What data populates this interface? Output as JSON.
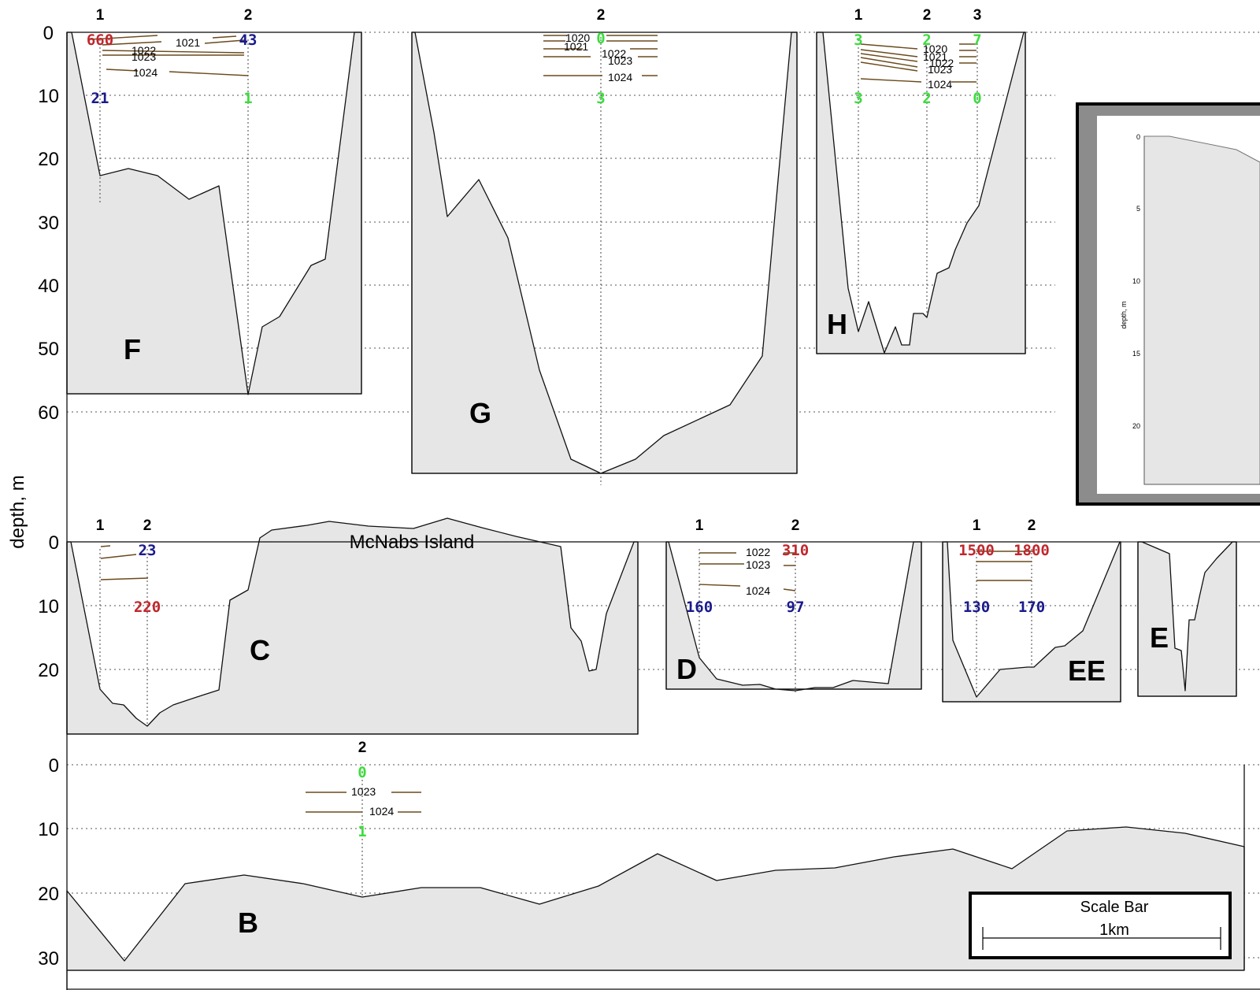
{
  "chart_data": {
    "type": "area",
    "title": "",
    "ylabel": "depth, m",
    "colors": {
      "high": "#c0272d",
      "mid": "#1a1a8c",
      "low": "#3ddc3d",
      "bottom_fill": "#e6e6e6",
      "isopycnal": "#6a4a1c"
    },
    "rows": [
      {
        "id": "top",
        "yticks": [
          0,
          10,
          20,
          30,
          40,
          50,
          60
        ]
      },
      {
        "id": "mid",
        "yticks": [
          0,
          10,
          20
        ]
      },
      {
        "id": "bottom",
        "yticks": [
          0,
          10,
          20,
          30
        ]
      }
    ],
    "sections": [
      {
        "name": "F",
        "row": "top",
        "stations": [
          {
            "label": "1",
            "surface_value": "660",
            "surface_color": "#c0272d",
            "bottom_value": "21",
            "bottom_color": "#1a1a8c"
          },
          {
            "label": "2",
            "surface_value": "43",
            "surface_color": "#1a1a8c",
            "bottom_value": "1",
            "bottom_color": "#3ddc3d"
          }
        ],
        "isopycnal_labels": [
          "1021",
          "1022",
          "1023",
          "1024"
        ]
      },
      {
        "name": "G",
        "row": "top",
        "stations": [
          {
            "label": "2",
            "surface_value": "0",
            "surface_color": "#3ddc3d",
            "bottom_value": "3",
            "bottom_color": "#3ddc3d"
          }
        ],
        "isopycnal_labels": [
          "1020",
          "1021",
          "1022",
          "1023",
          "1024"
        ]
      },
      {
        "name": "H",
        "row": "top",
        "stations": [
          {
            "label": "1",
            "surface_value": "3",
            "surface_color": "#3ddc3d",
            "bottom_value": "3",
            "bottom_color": "#3ddc3d"
          },
          {
            "label": "2",
            "surface_value": "2",
            "surface_color": "#3ddc3d",
            "bottom_value": "2",
            "bottom_color": "#3ddc3d"
          },
          {
            "label": "3",
            "surface_value": "7",
            "surface_color": "#3ddc3d",
            "bottom_value": "0",
            "bottom_color": "#3ddc3d"
          }
        ],
        "isopycnal_labels": [
          "1020",
          "1021",
          "1022",
          "1023",
          "1024"
        ]
      },
      {
        "name": "C",
        "row": "mid",
        "annotation": "McNabs Island",
        "stations": [
          {
            "label": "1",
            "surface_value": "",
            "surface_color": "",
            "bottom_value": "",
            "bottom_color": ""
          },
          {
            "label": "2",
            "surface_value": "23",
            "surface_color": "#1a1a8c",
            "bottom_value": "220",
            "bottom_color": "#c0272d"
          }
        ],
        "isopycnal_labels": []
      },
      {
        "name": "D",
        "row": "mid",
        "stations": [
          {
            "label": "1",
            "surface_value": "",
            "surface_color": "",
            "bottom_value": "160",
            "bottom_color": "#1a1a8c"
          },
          {
            "label": "2",
            "surface_value": "310",
            "surface_color": "#c0272d",
            "bottom_value": "97",
            "bottom_color": "#1a1a8c"
          }
        ],
        "isopycnal_labels": [
          "1022",
          "1023",
          "1024"
        ]
      },
      {
        "name": "EE",
        "row": "mid",
        "stations": [
          {
            "label": "1",
            "surface_value": "1500",
            "surface_color": "#c0272d",
            "bottom_value": "130",
            "bottom_color": "#1a1a8c"
          },
          {
            "label": "2",
            "surface_value": "1800",
            "surface_color": "#c0272d",
            "bottom_value": "170",
            "bottom_color": "#1a1a8c"
          }
        ],
        "isopycnal_labels": []
      },
      {
        "name": "E",
        "row": "mid",
        "stations": [],
        "isopycnal_labels": []
      },
      {
        "name": "B",
        "row": "bottom",
        "stations": [
          {
            "label": "2",
            "surface_value": "0",
            "surface_color": "#3ddc3d",
            "bottom_value": "1",
            "bottom_color": "#3ddc3d"
          }
        ],
        "isopycnal_labels": [
          "1023",
          "1024"
        ]
      }
    ],
    "inset": {
      "yticks": [
        "0",
        "5",
        "10",
        "15",
        "20"
      ],
      "ylabel": "depth, m"
    },
    "scale_bar": {
      "title": "Scale Bar",
      "length_label": "1km"
    }
  }
}
